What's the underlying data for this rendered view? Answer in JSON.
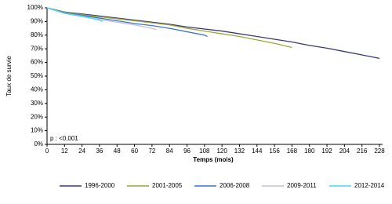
{
  "chart_data": {
    "type": "line",
    "y_label": "Taux de survie",
    "x_label": "Temps (mois)",
    "annotation": "p : <0,001",
    "xlim": [
      0,
      228
    ],
    "xticks": [
      0,
      12,
      24,
      36,
      48,
      60,
      72,
      84,
      96,
      108,
      120,
      132,
      144,
      156,
      168,
      180,
      192,
      204,
      216,
      228
    ],
    "ylim": [
      0,
      100
    ],
    "yticks": [
      {
        "value": 0,
        "label": "0%"
      },
      {
        "value": 10,
        "label": "10%"
      },
      {
        "value": 20,
        "label": "20%"
      },
      {
        "value": 30,
        "label": "30%"
      },
      {
        "value": 40,
        "label": "40%"
      },
      {
        "value": 50,
        "label": "50%"
      },
      {
        "value": 60,
        "label": "60%"
      },
      {
        "value": 70,
        "label": "70%"
      },
      {
        "value": 80,
        "label": "80%"
      },
      {
        "value": 90,
        "label": "90%"
      },
      {
        "value": 100,
        "label": "100%"
      }
    ],
    "legend": "bottom",
    "series": [
      {
        "name": "1996-2000",
        "color": "#3b3b6d",
        "x": [
          0,
          12,
          24,
          36,
          48,
          60,
          72,
          84,
          96,
          108,
          120,
          132,
          144,
          156,
          168,
          180,
          192,
          204,
          216,
          228
        ],
        "values": [
          100,
          97,
          95.5,
          94,
          92.5,
          91,
          89.5,
          88,
          86,
          84.5,
          83,
          81,
          79,
          77,
          75,
          72.5,
          70.5,
          68,
          65.5,
          63
        ]
      },
      {
        "name": "2001-2005",
        "color": "#9aa83c",
        "x": [
          0,
          12,
          24,
          36,
          48,
          60,
          72,
          84,
          96,
          108,
          120,
          132,
          144,
          156,
          168
        ],
        "values": [
          100,
          97,
          95,
          93.5,
          92,
          90.5,
          89,
          87.5,
          85,
          83,
          81,
          79,
          76.5,
          74,
          71
        ]
      },
      {
        "name": "2006-2008",
        "color": "#3a76c6",
        "x": [
          0,
          12,
          24,
          36,
          48,
          60,
          72,
          84,
          96,
          108,
          110
        ],
        "values": [
          100,
          96.5,
          94.5,
          92.5,
          90.5,
          88.5,
          87,
          85,
          82.5,
          80,
          79
        ]
      },
      {
        "name": "2009-2011",
        "color": "#c6bedc",
        "x": [
          0,
          12,
          24,
          36,
          48,
          60,
          72,
          75
        ],
        "values": [
          100,
          96,
          93.5,
          91.5,
          89.5,
          87.5,
          85,
          84
        ]
      },
      {
        "name": "2012-2014",
        "color": "#4fd6f0",
        "x": [
          0,
          12,
          24,
          36,
          38
        ],
        "values": [
          100,
          96,
          94,
          91,
          90
        ]
      }
    ]
  }
}
